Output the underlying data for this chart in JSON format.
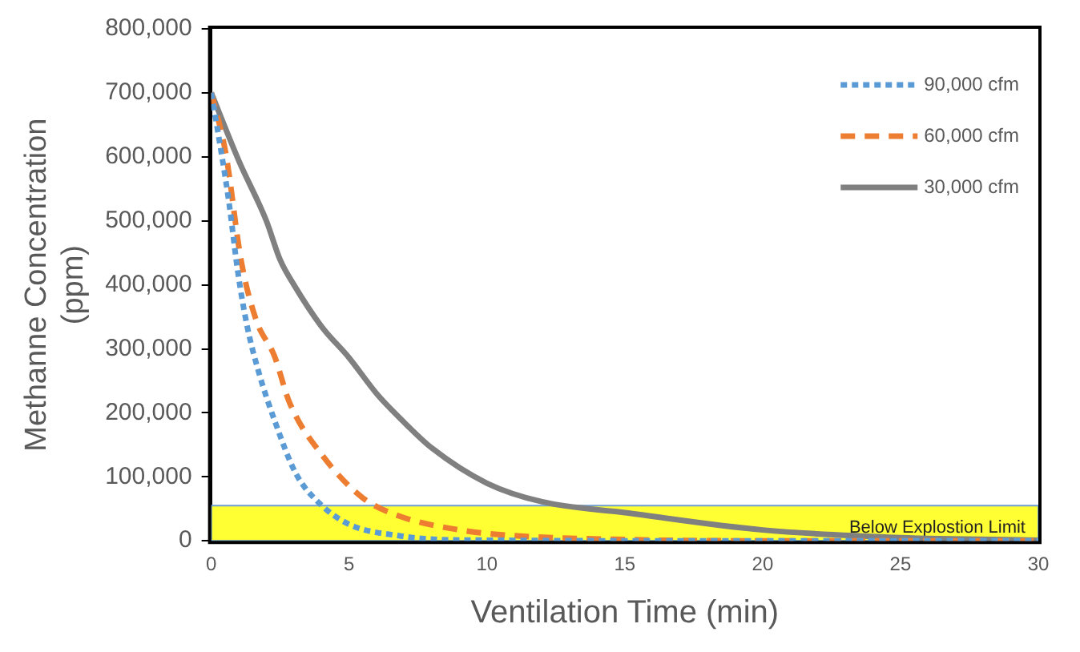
{
  "chart_data": {
    "type": "line",
    "xlabel": "Ventilation Time (min)",
    "ylabel": "Methanne Concentration (ppm)",
    "xlim": [
      0,
      30
    ],
    "xticks": [
      0,
      5,
      10,
      15,
      20,
      25,
      30
    ],
    "ylim": [
      0,
      800000
    ],
    "yticks": [
      0,
      {
        "value": 100000,
        "label": "100,000"
      },
      {
        "value": 200000,
        "label": "200,000"
      },
      {
        "value": 300000,
        "label": "300,000"
      },
      {
        "value": 400000,
        "label": "400,000"
      },
      {
        "value": 500000,
        "label": "500,000"
      },
      {
        "value": 600000,
        "label": "600,000"
      },
      {
        "value": 700000,
        "label": "700,000"
      },
      {
        "value": 800000,
        "label": "800,000"
      }
    ],
    "grid": false,
    "legend": "top right",
    "marker": "none",
    "series": [
      {
        "name": "90,000 cfm",
        "color": "#5b9bd5",
        "line_style": "dotted",
        "x": [
          0,
          0.2,
          0.64,
          0.97,
          1.3,
          1.74,
          2.29,
          3.06,
          3.94,
          5.04,
          6.8,
          8.3,
          10,
          15,
          20,
          25,
          30
        ],
        "values": [
          700000,
          650000,
          530000,
          419000,
          336000,
          261000,
          189000,
          106000,
          58000,
          25000,
          8000,
          2000,
          1000,
          0,
          0,
          0,
          0
        ]
      },
      {
        "name": "60,000 cfm",
        "color": "#ed7d31",
        "line_style": "dashed",
        "x": [
          0,
          0.53,
          1.08,
          1.63,
          2.29,
          2.84,
          4.04,
          5.5,
          6.8,
          9,
          11,
          15,
          20,
          25,
          30
        ],
        "values": [
          700000,
          605000,
          439000,
          345000,
          289000,
          216000,
          133000,
          67000,
          39000,
          17000,
          8000,
          2000,
          0,
          0,
          0
        ]
      },
      {
        "name": "30,000 cfm",
        "color": "#808080",
        "line_style": "solid",
        "x": [
          0,
          1,
          2,
          2.5,
          3,
          4,
          5,
          6,
          7,
          8,
          10,
          12,
          15,
          20,
          25,
          30
        ],
        "values": [
          700000,
          594000,
          500000,
          439000,
          400000,
          335000,
          286000,
          230000,
          185000,
          145000,
          90000,
          61000,
          44000,
          17000,
          5000,
          1000
        ]
      }
    ],
    "bands": [
      {
        "axis": "y",
        "from": 0,
        "to": 55000,
        "label": "Below Explostion Limit",
        "color": "#ffff00"
      }
    ]
  }
}
